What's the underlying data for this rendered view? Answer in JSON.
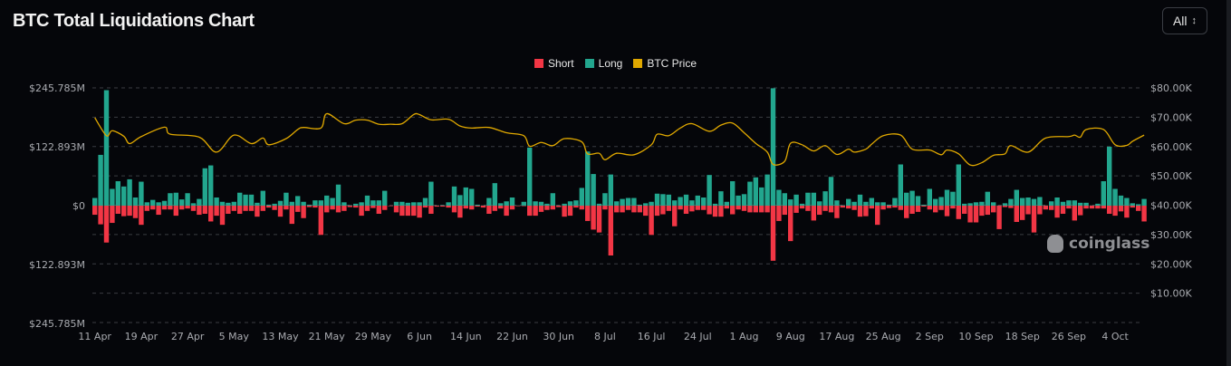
{
  "header": {
    "title": "BTC Total Liquidations Chart",
    "range_label": "All",
    "range_icon": "chevron-up-down-icon"
  },
  "watermark": "coinglass",
  "colors": {
    "short": "#f23645",
    "long": "#22a68e",
    "price": "#e0a800",
    "background": "#05060a",
    "grid": "#3a3c42"
  },
  "chart_data": {
    "type": "bar",
    "title": "BTC Total Liquidations Chart",
    "legend": [
      {
        "name": "Short",
        "color": "#f23645"
      },
      {
        "name": "Long",
        "color": "#22a68e"
      },
      {
        "name": "BTC Price",
        "color": "#e0a800"
      }
    ],
    "legend_position": "top-center",
    "left_axis": {
      "ticks": [
        "$245.785M",
        "$122.893M",
        "$0",
        "$122.893M",
        "$245.785M"
      ],
      "range": [
        -245.785,
        245.785
      ],
      "unit": "M USD"
    },
    "right_axis": {
      "ticks": [
        "$80.00K",
        "$70.00K",
        "$60.00K",
        "$50.00K",
        "$40.00K",
        "$30.00K",
        "$20.00K",
        "$10.00K"
      ],
      "range": [
        0,
        80
      ],
      "unit": "K USD"
    },
    "x_ticks": [
      "11 Apr",
      "19 Apr",
      "27 Apr",
      "5 May",
      "13 May",
      "21 May",
      "29 May",
      "6 Jun",
      "14 Jun",
      "22 Jun",
      "30 Jun",
      "8 Jul",
      "16 Jul",
      "24 Jul",
      "1 Aug",
      "9 Aug",
      "17 Aug",
      "25 Aug",
      "2 Sep",
      "10 Sep",
      "18 Sep",
      "26 Sep",
      "4 Oct"
    ],
    "x_tick_every_days": 8,
    "grid": true,
    "series": [
      {
        "name": "Long",
        "values": [
          16,
          106,
          241,
          35,
          51,
          40,
          55,
          17,
          50,
          7,
          12,
          7,
          10,
          26,
          27,
          13,
          26,
          5,
          14,
          78,
          84,
          17,
          8,
          6,
          8,
          27,
          23,
          23,
          6,
          31,
          2,
          4,
          10,
          27,
          8,
          20,
          8,
          2,
          11,
          11,
          21,
          16,
          44,
          7,
          1,
          4,
          7,
          21,
          11,
          11,
          31,
          0,
          8,
          8,
          6,
          7,
          7,
          16,
          50,
          0.5,
          1,
          7,
          40,
          22,
          38,
          35,
          2,
          0.5,
          16,
          47,
          5,
          9,
          17,
          0.5,
          8,
          121,
          9,
          8,
          4,
          26,
          0.5,
          4,
          9,
          11,
          37,
          113,
          66,
          4,
          26,
          65,
          9,
          14,
          16,
          16,
          2,
          5,
          8,
          25,
          24,
          23,
          11,
          18,
          23,
          11,
          21,
          17,
          64,
          4,
          30,
          8,
          51,
          21,
          24,
          50,
          59,
          38,
          65,
          245,
          33,
          26,
          13,
          23,
          4,
          27,
          27,
          9,
          30,
          60,
          11,
          1,
          14,
          8,
          23,
          8,
          16,
          7,
          7,
          2,
          16,
          86,
          27,
          31,
          20,
          2,
          35,
          14,
          18,
          33,
          29,
          86,
          4,
          5,
          7,
          8,
          29,
          7,
          0.5,
          5,
          14,
          33,
          16,
          17,
          14,
          18,
          0.5,
          9,
          17,
          8,
          11,
          11,
          6,
          6,
          0.5,
          4,
          51,
          123,
          35,
          21,
          16,
          5,
          3,
          14
        ]
      },
      {
        "name": "Short",
        "values": [
          19,
          39,
          77,
          36,
          17,
          22,
          21,
          26,
          40,
          11,
          8,
          19,
          8,
          8,
          21,
          8,
          6,
          11,
          19,
          17,
          33,
          21,
          40,
          17,
          11,
          17,
          11,
          11,
          23,
          11,
          4,
          9,
          23,
          8,
          38,
          13,
          26,
          3,
          4,
          61,
          14,
          8,
          14,
          11,
          3,
          4,
          21,
          11,
          5,
          17,
          9,
          1,
          14,
          21,
          21,
          21,
          25,
          4,
          17,
          2,
          2,
          4,
          14,
          25,
          6,
          8,
          2,
          4,
          17,
          11,
          6,
          21,
          8,
          1,
          1,
          21,
          21,
          13,
          9,
          8,
          3,
          23,
          21,
          4,
          8,
          32,
          50,
          56,
          8,
          104,
          14,
          14,
          9,
          14,
          14,
          21,
          61,
          21,
          18,
          11,
          43,
          8,
          17,
          12,
          9,
          9,
          18,
          23,
          23,
          6,
          18,
          8,
          11,
          14,
          14,
          14,
          14,
          115,
          32,
          19,
          74,
          15,
          6,
          11,
          31,
          19,
          11,
          14,
          26,
          4,
          6,
          9,
          23,
          22,
          6,
          40,
          8,
          5,
          4,
          9,
          26,
          17,
          13,
          2,
          8,
          14,
          9,
          22,
          6,
          28,
          17,
          35,
          35,
          21,
          19,
          14,
          49,
          3,
          5,
          34,
          30,
          18,
          56,
          18,
          8,
          9,
          25,
          17,
          6,
          31,
          20,
          6,
          6,
          6,
          6,
          17,
          21,
          12,
          25,
          4,
          11,
          33
        ]
      },
      {
        "name": "BTC Price",
        "points_day_kusd": [
          [
            0,
            69.8
          ],
          [
            2,
            63.7
          ],
          [
            3,
            65.4
          ],
          [
            5,
            63.5
          ],
          [
            6,
            61
          ],
          [
            8,
            63.4
          ],
          [
            12,
            66.6
          ],
          [
            13,
            64.2
          ],
          [
            18,
            63.2
          ],
          [
            21,
            58.1
          ],
          [
            24,
            63.9
          ],
          [
            27,
            61
          ],
          [
            29,
            62.9
          ],
          [
            30,
            60.6
          ],
          [
            33,
            62.7
          ],
          [
            35,
            65.8
          ],
          [
            36,
            66.5
          ],
          [
            39,
            66.3
          ],
          [
            40,
            71.2
          ],
          [
            43,
            67.8
          ],
          [
            45,
            69
          ],
          [
            47,
            69
          ],
          [
            49,
            67.6
          ],
          [
            51,
            67.6
          ],
          [
            53,
            67.8
          ],
          [
            55,
            70.9
          ],
          [
            56,
            70.9
          ],
          [
            58,
            69.1
          ],
          [
            61,
            69.3
          ],
          [
            63,
            67
          ],
          [
            65,
            66.3
          ],
          [
            68,
            66.5
          ],
          [
            71,
            64.7
          ],
          [
            74,
            63.7
          ],
          [
            75,
            60.1
          ],
          [
            77,
            61.4
          ],
          [
            79,
            60.3
          ],
          [
            81,
            62.7
          ],
          [
            84,
            61.6
          ],
          [
            85,
            57.5
          ],
          [
            87,
            57.7
          ],
          [
            88,
            55.5
          ],
          [
            90,
            57.7
          ],
          [
            93,
            57.2
          ],
          [
            96,
            60.6
          ],
          [
            97,
            64.2
          ],
          [
            99,
            63.7
          ],
          [
            101,
            66.3
          ],
          [
            103,
            67.8
          ],
          [
            106,
            65.2
          ],
          [
            108,
            67.3
          ],
          [
            110,
            68
          ],
          [
            112,
            64.7
          ],
          [
            114,
            61.1
          ],
          [
            116,
            58.1
          ],
          [
            117,
            53.9
          ],
          [
            119,
            55
          ],
          [
            120,
            61.1
          ],
          [
            122,
            60.6
          ],
          [
            124,
            58.5
          ],
          [
            126,
            60.3
          ],
          [
            128,
            57.3
          ],
          [
            130,
            59.1
          ],
          [
            131,
            58.1
          ],
          [
            133,
            59.1
          ],
          [
            134,
            60.8
          ],
          [
            136,
            63.7
          ],
          [
            139,
            63.9
          ],
          [
            141,
            59.1
          ],
          [
            144,
            58.8
          ],
          [
            146,
            57.2
          ],
          [
            147,
            58.8
          ],
          [
            149,
            57.5
          ],
          [
            151,
            53.7
          ],
          [
            153,
            54.5
          ],
          [
            155,
            57
          ],
          [
            157,
            57.5
          ],
          [
            158,
            60.3
          ],
          [
            161,
            58.1
          ],
          [
            164,
            62.9
          ],
          [
            168,
            63.4
          ],
          [
            169,
            63.9
          ],
          [
            170,
            63.2
          ],
          [
            171,
            65.8
          ],
          [
            174,
            65.8
          ],
          [
            176,
            60.6
          ],
          [
            178,
            60.4
          ],
          [
            179,
            61.8
          ],
          [
            181,
            63.9
          ]
        ]
      }
    ]
  }
}
